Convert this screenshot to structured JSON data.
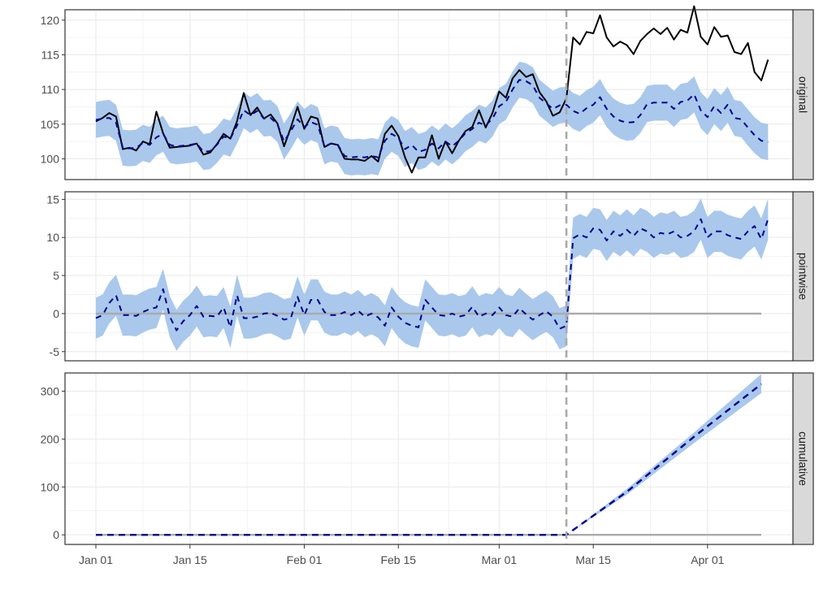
{
  "chart_data": {
    "type": "line",
    "x_type": "date",
    "x_start": "2024-01-01",
    "x_end": "2024-04-09",
    "intervention_date": "2024-03-11",
    "x_ticks": [
      {
        "date": "2024-01-01",
        "label": "Jan 01"
      },
      {
        "date": "2024-01-15",
        "label": "Jan 15"
      },
      {
        "date": "2024-02-01",
        "label": "Feb 01"
      },
      {
        "date": "2024-02-15",
        "label": "Feb 15"
      },
      {
        "date": "2024-03-01",
        "label": "Mar 01"
      },
      {
        "date": "2024-03-15",
        "label": "Mar 15"
      },
      {
        "date": "2024-04-01",
        "label": "Apr 01"
      }
    ],
    "colors": {
      "actual": "#000000",
      "predicted": "#00008b",
      "band": "#a9c8ec",
      "zero_line": "#aaaaaa",
      "intervention_line": "#aaaaaa",
      "strip_fill": "#d9d9d9",
      "grid": "#ebebeb"
    },
    "panels": [
      {
        "strip": "original",
        "ylim": [
          97,
          121.5
        ],
        "y_ticks": [
          100,
          105,
          110,
          115,
          120
        ],
        "y_tick_labels": [
          "100",
          "105",
          "110",
          "115",
          "120"
        ],
        "ci_width": 2.6,
        "actual": [
          105.4,
          105.9,
          106.6,
          106.1,
          101.4,
          101.6,
          101.2,
          102.5,
          102.1,
          106.8,
          103.7,
          101.6,
          101.7,
          101.8,
          101.9,
          102.2,
          100.6,
          100.9,
          102.1,
          103.6,
          102.9,
          105.4,
          109.5,
          106.3,
          107.4,
          105.8,
          106.4,
          105.1,
          101.8,
          104.5,
          107.5,
          104.3,
          106.1,
          105.8,
          101.7,
          102.2,
          102.0,
          100.0,
          99.9,
          99.9,
          99.7,
          100.4,
          99.6,
          103.6,
          104.8,
          103.3,
          100.2,
          98.0,
          100.2,
          100.2,
          103.4,
          100.0,
          102.5,
          100.8,
          102.6,
          104.0,
          104.6,
          107.0,
          104.5,
          106.6,
          109.7,
          108.8,
          111.6,
          112.8,
          111.8,
          112.2,
          109.6,
          108.3,
          106.2,
          106.7,
          108.7,
          117.5,
          116.5,
          118.3,
          118.1,
          120.7,
          117.5,
          116.2,
          116.9,
          116.4,
          115.1,
          117.0,
          118.0,
          118.8,
          118.0,
          118.9,
          117.2,
          118.6,
          118.2,
          122.0,
          117.6,
          116.5,
          119.0,
          117.6,
          117.8,
          115.4,
          115.1,
          116.7,
          112.5,
          111.3,
          114.3
        ],
        "predicted": [
          105.6,
          105.8,
          105.9,
          105.2,
          101.6,
          101.5,
          101.6,
          102.3,
          102.0,
          103.1,
          103.6,
          102.0,
          101.8,
          101.9,
          102.0,
          102.2,
          101.0,
          101.1,
          102.0,
          103.2,
          102.9,
          104.8,
          107.0,
          106.3,
          106.9,
          105.8,
          105.9,
          105.0,
          102.5,
          104.0,
          105.7,
          104.6,
          105.3,
          104.9,
          101.8,
          102.2,
          102.0,
          100.4,
          100.2,
          100.3,
          100.2,
          100.4,
          100.2,
          102.6,
          103.6,
          103.0,
          101.4,
          102.0,
          101.0,
          101.3,
          102.2,
          101.5,
          102.5,
          101.8,
          102.6,
          103.7,
          104.3,
          105.2,
          104.8,
          105.8,
          107.6,
          108.2,
          110.0,
          111.4,
          111.2,
          110.6,
          108.8,
          108.0,
          107.2,
          107.7,
          107.8,
          106.9,
          106.5,
          107.3,
          107.8,
          108.9,
          107.2,
          106.1,
          105.5,
          105.2,
          105.3,
          106.3,
          107.9,
          108.1,
          108.1,
          108.1,
          107.2,
          108.2,
          108.4,
          109.3,
          107.0,
          106.0,
          107.6,
          106.6,
          107.8,
          105.9,
          105.7,
          104.5,
          103.4,
          102.6,
          102.4
        ]
      },
      {
        "strip": "pointwise",
        "ylim": [
          -6.2,
          16
        ],
        "y_ticks": [
          -5,
          0,
          5,
          10,
          15
        ],
        "y_tick_labels": [
          "-5",
          "0",
          "5",
          "10",
          "15"
        ],
        "ci_width": 2.7,
        "zero_line": 0,
        "predicted": [
          -0.6,
          -0.2,
          1.4,
          2.4,
          -0.2,
          -0.2,
          -0.3,
          0.2,
          0.6,
          0.8,
          3.2,
          -0.4,
          -2.2,
          -1.0,
          -0.2,
          1.0,
          -0.4,
          -0.3,
          -0.4,
          0.8,
          -1.8,
          2.4,
          -0.6,
          -0.6,
          -0.4,
          0.0,
          0.1,
          -0.3,
          -0.8,
          -0.6,
          2.2,
          -0.2,
          1.8,
          1.8,
          0.2,
          -0.2,
          -0.2,
          0.2,
          -0.2,
          0.4,
          -0.4,
          0.0,
          -0.5,
          -1.6,
          0.8,
          -0.4,
          -1.2,
          -1.6,
          -1.8,
          1.8,
          0.8,
          -0.2,
          -0.3,
          0.0,
          -0.4,
          -0.2,
          0.9,
          -0.4,
          0.0,
          -0.2,
          0.8,
          -0.2,
          -0.4,
          0.7,
          -0.1,
          -0.8,
          -0.2,
          0.3,
          -0.4,
          -2.0,
          -1.6,
          9.9,
          10.4,
          10.0,
          11.2,
          11.0,
          9.6,
          10.8,
          10.2,
          11.0,
          10.2,
          11.2,
          10.8,
          10.0,
          10.6,
          10.4,
          10.8,
          10.0,
          10.2,
          10.8,
          12.4,
          10.0,
          10.8,
          10.8,
          10.3,
          10.0,
          9.8,
          10.8,
          11.5,
          9.8,
          12.4
        ]
      },
      {
        "strip": "cumulative",
        "ylim": [
          -20,
          338
        ],
        "y_ticks": [
          0,
          100,
          200,
          300
        ],
        "y_tick_labels": [
          "0",
          "100",
          "200",
          "300"
        ],
        "zero_line": 0,
        "predicted_points": [
          [
            "2024-01-01",
            0
          ],
          [
            "2024-03-11",
            0
          ],
          [
            "2024-03-20",
            90
          ],
          [
            "2024-03-30",
            205
          ],
          [
            "2024-04-09",
            315
          ]
        ],
        "band": [
          [
            "2024-03-11",
            0,
            0
          ],
          [
            "2024-03-20",
            84,
            96
          ],
          [
            "2024-03-30",
            192,
            214
          ],
          [
            "2024-04-09",
            296,
            336
          ]
        ]
      }
    ]
  }
}
